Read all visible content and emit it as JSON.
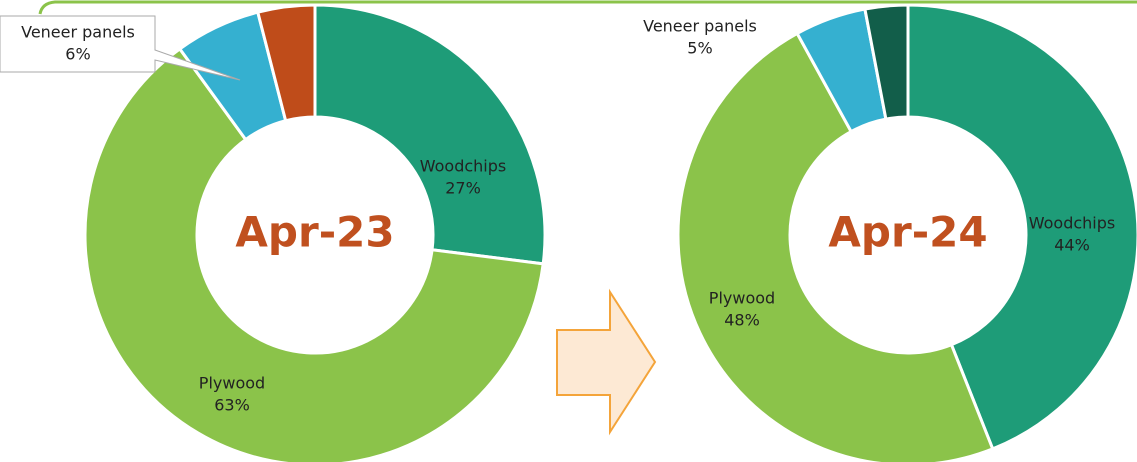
{
  "chart_data": [
    {
      "type": "pie",
      "title": "Apr-23",
      "categories": [
        "Woodchips",
        "Plywood",
        "Veneer panels",
        null
      ],
      "values": [
        27,
        63,
        6,
        4
      ],
      "value_labels": [
        "27%",
        "63%",
        "6%",
        null
      ],
      "colors": [
        "#1e9c78",
        "#8bc34a",
        "#35b0d0",
        "#bf4c1a"
      ]
    },
    {
      "type": "pie",
      "title": "Apr-24",
      "categories": [
        "Woodchips",
        "Plywood",
        "Veneer panels",
        null
      ],
      "values": [
        44,
        48,
        5,
        3
      ],
      "value_labels": [
        "44%",
        "48%",
        "5%",
        null
      ],
      "colors": [
        "#1e9c78",
        "#8bc34a",
        "#35b0d0",
        "#125e4a"
      ]
    }
  ]
}
